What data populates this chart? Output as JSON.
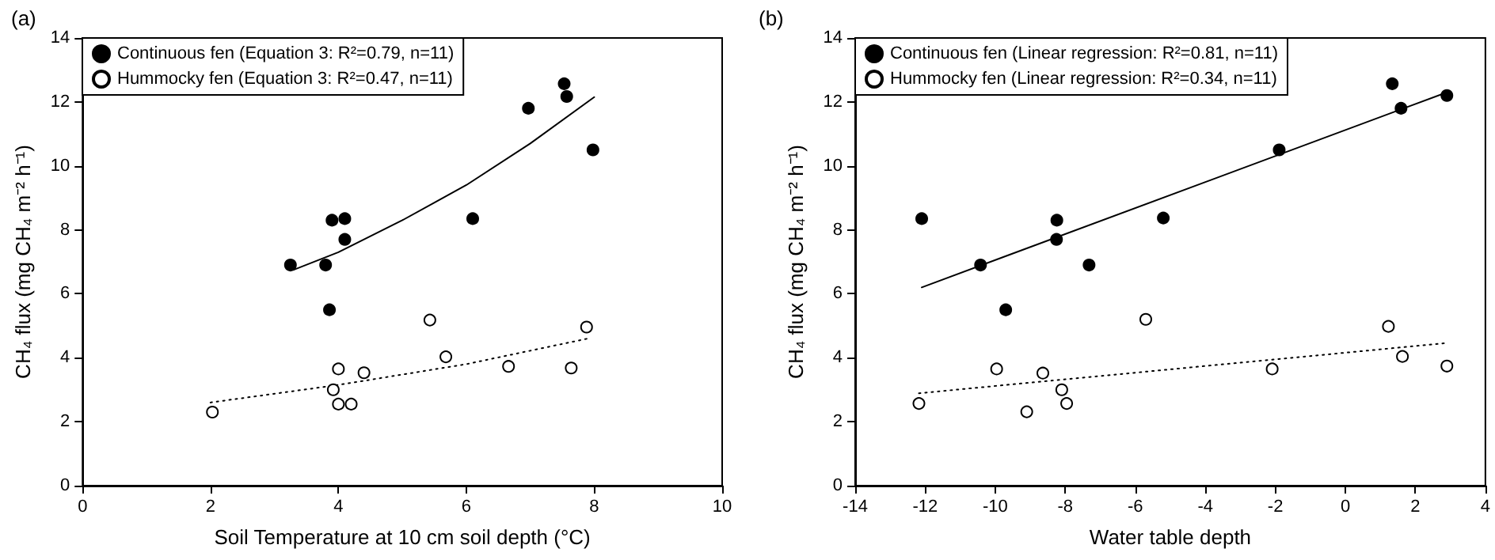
{
  "chart_data": [
    {
      "type": "scatter",
      "title": "(a)",
      "xlabel": "Soil Temperature at 10 cm soil depth (°C)",
      "ylabel": "CH₄ flux (mg CH₄ m⁻² h⁻¹)",
      "xlim": [
        0,
        10
      ],
      "xticks": [
        0,
        2,
        4,
        6,
        8,
        10
      ],
      "ylim": [
        0,
        14
      ],
      "yticks": [
        0,
        2,
        4,
        6,
        8,
        10,
        12,
        14
      ],
      "grid": false,
      "legend": "top left",
      "series": [
        {
          "name": "Continuous fen (Equation 3: R²=0.79, n=11)",
          "color": "#000000",
          "marker": "circle",
          "x": [
            3.25,
            3.8,
            3.86,
            3.9,
            4.1,
            4.1,
            6.1,
            6.97,
            7.53,
            7.57,
            7.98
          ],
          "values": [
            6.9,
            6.9,
            5.5,
            8.3,
            8.35,
            7.7,
            8.35,
            11.8,
            12.57,
            12.17,
            10.5
          ]
        },
        {
          "name": "Hummocky fen (Equation 3: R²=0.47, n=11)",
          "color": "#ffffff",
          "marker": "circle",
          "x": [
            2.03,
            3.92,
            4.0,
            4.0,
            4.2,
            4.4,
            5.43,
            5.68,
            6.66,
            7.64,
            7.88
          ],
          "values": [
            2.3,
            3.0,
            3.65,
            2.55,
            2.55,
            3.53,
            5.18,
            4.03,
            3.73,
            3.68,
            4.96
          ]
        },
        {
          "type": "line",
          "color": "#000000",
          "marker": "none",
          "line_style": "solid",
          "x": [
            3.3,
            4,
            5,
            6,
            7,
            8
          ],
          "values": [
            6.75,
            7.3,
            8.3,
            9.4,
            10.7,
            12.15
          ]
        },
        {
          "type": "line",
          "color": "#000000",
          "marker": "none",
          "line_style": "dotted",
          "x": [
            2,
            4,
            6,
            7.9
          ],
          "values": [
            2.6,
            3.15,
            3.8,
            4.6
          ]
        }
      ]
    },
    {
      "type": "scatter",
      "title": "(b)",
      "xlabel": "Water table depth",
      "ylabel": "CH₄ flux (mg CH₄ m⁻² h⁻¹)",
      "xlim": [
        -14,
        4
      ],
      "xticks": [
        -14,
        -12,
        -10,
        -8,
        -6,
        -4,
        -2,
        0,
        2,
        4
      ],
      "ylim": [
        0,
        14
      ],
      "yticks": [
        0,
        2,
        4,
        6,
        8,
        10,
        12,
        14
      ],
      "grid": false,
      "legend": "top left",
      "series": [
        {
          "name": "Continuous fen (Linear regression: R²=0.81, n=11)",
          "color": "#000000",
          "marker": "circle",
          "x": [
            -12.1,
            -10.42,
            -9.7,
            -8.24,
            -8.25,
            -7.32,
            -5.2,
            -1.89,
            1.34,
            1.59,
            2.9
          ],
          "values": [
            8.35,
            6.9,
            5.5,
            8.3,
            7.7,
            6.9,
            8.37,
            10.5,
            12.57,
            11.8,
            12.2
          ]
        },
        {
          "name": "Hummocky fen (Linear regression: R²=0.34, n=11)",
          "color": "#ffffff",
          "marker": "circle",
          "x": [
            -12.18,
            -9.96,
            -9.1,
            -8.64,
            -8.1,
            -7.96,
            -5.7,
            -2.09,
            1.23,
            1.63,
            2.9
          ],
          "values": [
            2.57,
            3.65,
            2.31,
            3.52,
            3.0,
            2.57,
            5.2,
            3.65,
            4.98,
            4.04,
            3.74
          ]
        },
        {
          "type": "line",
          "color": "#000000",
          "marker": "none",
          "line_style": "solid",
          "x": [
            -12.1,
            2.9
          ],
          "values": [
            6.2,
            12.3
          ]
        },
        {
          "type": "line",
          "color": "#000000",
          "marker": "none",
          "line_style": "dotted",
          "x": [
            -12.18,
            2.9
          ],
          "values": [
            2.89,
            4.46
          ]
        }
      ]
    }
  ]
}
